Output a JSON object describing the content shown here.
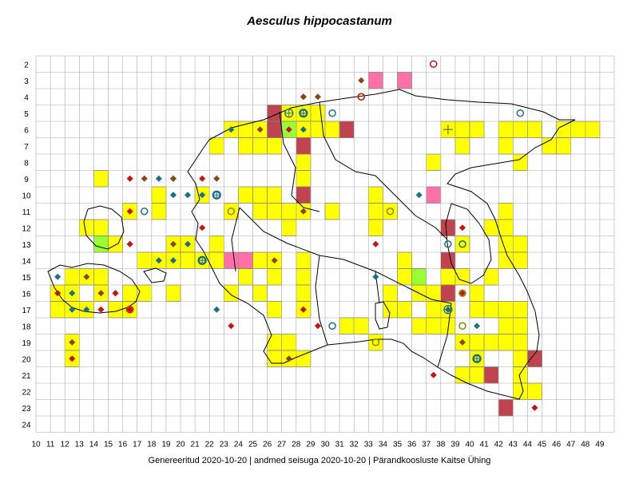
{
  "title": "Aesculus hippocastanum",
  "footer": "Genereeritud 2020-10-20  |  andmed seisuga 2020-10-20  |  Pärandkoosluste Kaitse Ühing",
  "grid": {
    "columns": [
      10,
      11,
      12,
      13,
      14,
      15,
      16,
      17,
      18,
      19,
      20,
      21,
      22,
      23,
      24,
      25,
      26,
      27,
      28,
      29,
      30,
      31,
      32,
      33,
      34,
      35,
      36,
      37,
      38,
      39,
      40,
      41,
      42,
      43,
      44,
      45,
      46,
      47,
      48,
      49
    ],
    "rows": [
      2,
      3,
      4,
      5,
      6,
      7,
      8,
      9,
      10,
      11,
      12,
      13,
      14,
      15,
      16,
      17,
      18,
      19,
      20,
      21,
      22,
      23,
      24
    ]
  },
  "colors": {
    "yellow": "#ffff00",
    "darkred": "#c0444f",
    "pink": "#ff6fa8",
    "green": "#99ff33",
    "grid": "#aaaaaa",
    "diamond_blue": "#1a6e8e",
    "diamond_brown": "#8b4513",
    "diamond_red": "#cc1111",
    "circle_teal": "#1a6e8e",
    "circle_olive": "#888800",
    "circle_red": "#cc1111"
  },
  "cells": {
    "yellow": [
      [
        27,
        5
      ],
      [
        28,
        5
      ],
      [
        29,
        5
      ],
      [
        23,
        6
      ],
      [
        24,
        6
      ],
      [
        25,
        6
      ],
      [
        28,
        6
      ],
      [
        29,
        6
      ],
      [
        30,
        6
      ],
      [
        31,
        6
      ],
      [
        38,
        6
      ],
      [
        39,
        6
      ],
      [
        40,
        6
      ],
      [
        42,
        6
      ],
      [
        43,
        6
      ],
      [
        44,
        6
      ],
      [
        46,
        6
      ],
      [
        47,
        6
      ],
      [
        48,
        6
      ],
      [
        22,
        7
      ],
      [
        24,
        7
      ],
      [
        25,
        7
      ],
      [
        26,
        7
      ],
      [
        28,
        7
      ],
      [
        39,
        7
      ],
      [
        42,
        7
      ],
      [
        45,
        7
      ],
      [
        46,
        7
      ],
      [
        37,
        8
      ],
      [
        28,
        8
      ],
      [
        43,
        8
      ],
      [
        14,
        9
      ],
      [
        28,
        9
      ],
      [
        21,
        10
      ],
      [
        25,
        10
      ],
      [
        24,
        10
      ],
      [
        26,
        10
      ],
      [
        18,
        10
      ],
      [
        33,
        10
      ],
      [
        16,
        11
      ],
      [
        25,
        11
      ],
      [
        26,
        11
      ],
      [
        27,
        11
      ],
      [
        28,
        11
      ],
      [
        30,
        11
      ],
      [
        18,
        11
      ],
      [
        23,
        11
      ],
      [
        33,
        11
      ],
      [
        34,
        11
      ],
      [
        42,
        11
      ],
      [
        14,
        12
      ],
      [
        13,
        12
      ],
      [
        27,
        12
      ],
      [
        33,
        12
      ],
      [
        41,
        12
      ],
      [
        42,
        12
      ],
      [
        15,
        13
      ],
      [
        19,
        13
      ],
      [
        20,
        13
      ],
      [
        22,
        13
      ],
      [
        39,
        13
      ],
      [
        42,
        13
      ],
      [
        43,
        13
      ],
      [
        17,
        14
      ],
      [
        18,
        14
      ],
      [
        19,
        14
      ],
      [
        20,
        14
      ],
      [
        21,
        14
      ],
      [
        22,
        14
      ],
      [
        25,
        14
      ],
      [
        26,
        14
      ],
      [
        28,
        14
      ],
      [
        35,
        14
      ],
      [
        42,
        14
      ],
      [
        43,
        14
      ],
      [
        12,
        15
      ],
      [
        13,
        15
      ],
      [
        14,
        15
      ],
      [
        24,
        15
      ],
      [
        26,
        15
      ],
      [
        28,
        15
      ],
      [
        35,
        15
      ],
      [
        36,
        15
      ],
      [
        38,
        15
      ],
      [
        39,
        15
      ],
      [
        41,
        15
      ],
      [
        11,
        16
      ],
      [
        12,
        16
      ],
      [
        14,
        16
      ],
      [
        16,
        16
      ],
      [
        17,
        16
      ],
      [
        19,
        16
      ],
      [
        23,
        16
      ],
      [
        25,
        16
      ],
      [
        28,
        16
      ],
      [
        34,
        16
      ],
      [
        36,
        16
      ],
      [
        37,
        16
      ],
      [
        40,
        16
      ],
      [
        11,
        17
      ],
      [
        12,
        17
      ],
      [
        13,
        17
      ],
      [
        15,
        17
      ],
      [
        16,
        17
      ],
      [
        26,
        17
      ],
      [
        28,
        17
      ],
      [
        34,
        17
      ],
      [
        35,
        17
      ],
      [
        37,
        17
      ],
      [
        38,
        17
      ],
      [
        40,
        17
      ],
      [
        41,
        17
      ],
      [
        42,
        17
      ],
      [
        43,
        17
      ],
      [
        31,
        18
      ],
      [
        32,
        18
      ],
      [
        36,
        18
      ],
      [
        37,
        18
      ],
      [
        38,
        18
      ],
      [
        42,
        18
      ],
      [
        43,
        18
      ],
      [
        12,
        19
      ],
      [
        26,
        19
      ],
      [
        27,
        19
      ],
      [
        33,
        19
      ],
      [
        39,
        19
      ],
      [
        40,
        19
      ],
      [
        41,
        19
      ],
      [
        42,
        19
      ],
      [
        43,
        19
      ],
      [
        12,
        20
      ],
      [
        26,
        20
      ],
      [
        27,
        20
      ],
      [
        28,
        20
      ],
      [
        40,
        20
      ],
      [
        43,
        20
      ],
      [
        44,
        20
      ],
      [
        39,
        21
      ],
      [
        40,
        21
      ],
      [
        43,
        21
      ],
      [
        43,
        22
      ],
      [
        44,
        22
      ]
    ],
    "darkred": [
      [
        26,
        5
      ],
      [
        26,
        6
      ],
      [
        28,
        7
      ],
      [
        31,
        6
      ],
      [
        28,
        10
      ],
      [
        38,
        12
      ],
      [
        38,
        14
      ],
      [
        38,
        16
      ],
      [
        44,
        20
      ],
      [
        41,
        21
      ],
      [
        42,
        23
      ]
    ],
    "pink": [
      [
        33,
        3
      ],
      [
        35,
        3
      ],
      [
        23,
        14
      ],
      [
        24,
        14
      ],
      [
        37,
        10
      ]
    ],
    "green": [
      [
        27,
        6
      ],
      [
        14,
        13
      ],
      [
        36,
        15
      ]
    ]
  },
  "symbols": {
    "diamond_blue": [
      [
        23,
        6
      ],
      [
        28,
        6
      ],
      [
        18,
        9
      ],
      [
        19,
        9
      ],
      [
        19,
        10
      ],
      [
        20,
        10
      ],
      [
        21,
        10
      ],
      [
        18,
        14
      ],
      [
        19,
        14
      ],
      [
        11,
        15
      ],
      [
        12,
        16
      ],
      [
        12,
        17
      ],
      [
        13,
        17
      ],
      [
        16,
        13
      ],
      [
        20,
        13
      ],
      [
        33,
        15
      ],
      [
        38,
        17
      ],
      [
        40,
        18
      ],
      [
        36,
        10
      ],
      [
        22,
        17
      ]
    ],
    "diamond_brown": [
      [
        32,
        3
      ],
      [
        28,
        4
      ],
      [
        29,
        4
      ],
      [
        25,
        6
      ],
      [
        28,
        4
      ],
      [
        17,
        9
      ],
      [
        19,
        9
      ],
      [
        22,
        9
      ],
      [
        13,
        15
      ],
      [
        14,
        16
      ],
      [
        15,
        16
      ],
      [
        14,
        17
      ],
      [
        19,
        13
      ],
      [
        26,
        14
      ],
      [
        28,
        11
      ],
      [
        12,
        19
      ],
      [
        27,
        20
      ],
      [
        39,
        19
      ]
    ],
    "diamond_red": [
      [
        27,
        6
      ],
      [
        16,
        9
      ],
      [
        21,
        9
      ],
      [
        16,
        11
      ],
      [
        21,
        12
      ],
      [
        16,
        13
      ],
      [
        11,
        16
      ],
      [
        15,
        16
      ],
      [
        14,
        17
      ],
      [
        16,
        17
      ],
      [
        23,
        18
      ],
      [
        28,
        17
      ],
      [
        29,
        18
      ],
      [
        33,
        13
      ],
      [
        39,
        16
      ],
      [
        39,
        12
      ],
      [
        12,
        20
      ],
      [
        37,
        21
      ],
      [
        44,
        23
      ]
    ],
    "circle_teal": [
      [
        17,
        11
      ],
      [
        21,
        14
      ],
      [
        22,
        10
      ],
      [
        30,
        5
      ],
      [
        38,
        13
      ],
      [
        39,
        13
      ],
      [
        43,
        5
      ],
      [
        30,
        18
      ],
      [
        40,
        20
      ],
      [
        28,
        5
      ]
    ],
    "circle_olive": [
      [
        23,
        11
      ],
      [
        34,
        11
      ],
      [
        32,
        4
      ],
      [
        39,
        16
      ],
      [
        39,
        18
      ],
      [
        33,
        19
      ]
    ],
    "circle_red": [
      [
        37,
        2
      ],
      [
        16,
        17
      ],
      [
        32,
        4
      ]
    ],
    "crosshair": [
      [
        27,
        5
      ],
      [
        28,
        5
      ],
      [
        38,
        17
      ],
      [
        21,
        14
      ],
      [
        22,
        10
      ],
      [
        40,
        20
      ]
    ],
    "plus": [
      [
        38,
        6
      ]
    ]
  }
}
